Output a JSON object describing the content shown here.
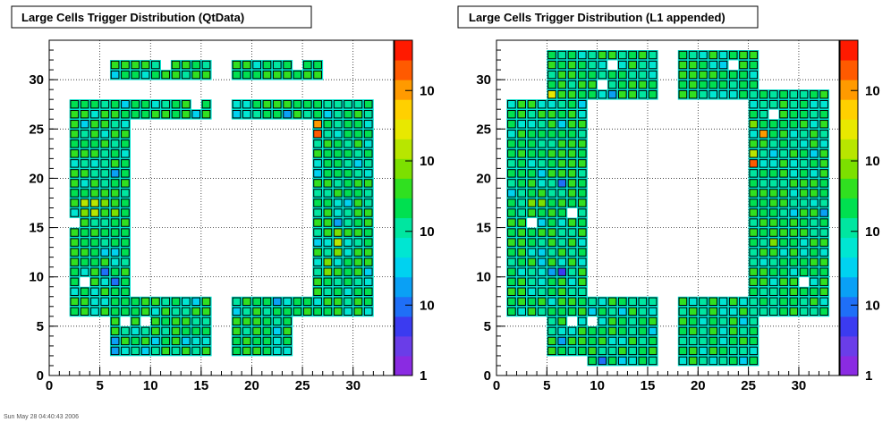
{
  "footer_text": "Sun May 28 04:40:43 2006",
  "chart_data": [
    {
      "type": "heatmap",
      "title": "Large Cells Trigger Distribution (QtData)",
      "xlabel": "",
      "ylabel": "",
      "xlim": [
        0,
        34
      ],
      "ylim": [
        0,
        34
      ],
      "x_ticks": [
        "0",
        "5",
        "10",
        "15",
        "20",
        "25",
        "30"
      ],
      "y_ticks": [
        "0",
        "5",
        "10",
        "15",
        "20",
        "25",
        "30"
      ],
      "z_ticks": [
        "1",
        "10",
        "10",
        "10",
        "10",
        "10"
      ],
      "z_scale": "log",
      "grid": true,
      "regions": [
        {
          "x": [
            6,
            16
          ],
          "y": [
            30,
            32
          ]
        },
        {
          "x": [
            18,
            27
          ],
          "y": [
            30,
            32
          ]
        },
        {
          "x": [
            2,
            16
          ],
          "y": [
            26,
            28
          ]
        },
        {
          "x": [
            18,
            32
          ],
          "y": [
            26,
            28
          ]
        },
        {
          "x": [
            2,
            8
          ],
          "y": [
            8,
            26
          ]
        },
        {
          "x": [
            26,
            32
          ],
          "y": [
            8,
            26
          ]
        },
        {
          "x": [
            2,
            16
          ],
          "y": [
            6,
            8
          ]
        },
        {
          "x": [
            18,
            32
          ],
          "y": [
            6,
            8
          ]
        },
        {
          "x": [
            6,
            16
          ],
          "y": [
            2,
            6
          ]
        },
        {
          "x": [
            18,
            24
          ],
          "y": [
            2,
            6
          ]
        }
      ],
      "holes": [
        [
          11,
          31
        ],
        [
          24,
          31
        ],
        [
          2,
          15
        ],
        [
          3,
          9
        ],
        [
          7,
          5
        ],
        [
          9,
          5
        ],
        [
          14,
          27
        ]
      ],
      "hot_cells": [
        {
          "x": 26,
          "y": 24,
          "level": 0.95
        },
        {
          "x": 26,
          "y": 25,
          "level": 0.85
        },
        {
          "x": 3,
          "y": 17,
          "level": 0.7
        },
        {
          "x": 4,
          "y": 17,
          "level": 0.7
        },
        {
          "x": 5,
          "y": 17,
          "level": 0.65
        },
        {
          "x": 4,
          "y": 16,
          "level": 0.68
        },
        {
          "x": 3,
          "y": 16,
          "level": 0.62
        },
        {
          "x": 6,
          "y": 16,
          "level": 0.6
        },
        {
          "x": 28,
          "y": 13,
          "level": 0.66
        },
        {
          "x": 28,
          "y": 12,
          "level": 0.64
        },
        {
          "x": 27,
          "y": 11,
          "level": 0.62
        },
        {
          "x": 27,
          "y": 10,
          "level": 0.6
        },
        {
          "x": 28,
          "y": 14,
          "level": 0.6
        },
        {
          "x": 6,
          "y": 9,
          "level": 0.18
        },
        {
          "x": 5,
          "y": 10,
          "level": 0.2
        },
        {
          "x": 6,
          "y": 20,
          "level": 0.22
        },
        {
          "x": 6,
          "y": 2,
          "level": 0.22
        },
        {
          "x": 6,
          "y": 3,
          "level": 0.25
        },
        {
          "x": 23,
          "y": 26,
          "level": 0.22
        },
        {
          "x": 22,
          "y": 7,
          "level": 0.25
        },
        {
          "x": 28,
          "y": 15,
          "level": 0.28
        },
        {
          "x": 6,
          "y": 30,
          "level": 0.3
        }
      ],
      "seed": 7
    },
    {
      "type": "heatmap",
      "title": "Large Cells Trigger Distribution (L1 appended)",
      "xlabel": "",
      "ylabel": "",
      "xlim": [
        0,
        34
      ],
      "ylim": [
        0,
        34
      ],
      "x_ticks": [
        "0",
        "5",
        "10",
        "15",
        "20",
        "25",
        "30"
      ],
      "y_ticks": [
        "0",
        "5",
        "10",
        "15",
        "20",
        "25",
        "30"
      ],
      "z_ticks": [
        "1",
        "10",
        "10",
        "10",
        "10",
        "10"
      ],
      "z_scale": "log",
      "grid": true,
      "regions": [
        {
          "x": [
            5,
            16
          ],
          "y": [
            28,
            33
          ]
        },
        {
          "x": [
            18,
            26
          ],
          "y": [
            28,
            33
          ]
        },
        {
          "x": 1,
          "y": [
            0,
            0
          ]
        },
        {
          "x": [
            1,
            9
          ],
          "y": [
            26,
            28
          ]
        },
        {
          "x": [
            25,
            33
          ],
          "y": [
            26,
            29
          ]
        },
        {
          "x": [
            1,
            9
          ],
          "y": [
            6,
            26
          ]
        },
        {
          "x": [
            25,
            33
          ],
          "y": [
            6,
            26
          ]
        },
        {
          "x": [
            1,
            16
          ],
          "y": [
            6,
            8
          ]
        },
        {
          "x": [
            18,
            33
          ],
          "y": [
            6,
            8
          ]
        },
        {
          "x": [
            5,
            16
          ],
          "y": [
            2,
            6
          ]
        },
        {
          "x": [
            18,
            26
          ],
          "y": [
            1,
            6
          ]
        },
        {
          "x": [
            9,
            16
          ],
          "y": [
            1,
            2
          ]
        }
      ],
      "holes": [
        [
          11,
          31
        ],
        [
          10,
          29
        ],
        [
          23,
          31
        ],
        [
          3,
          15
        ],
        [
          7,
          16
        ],
        [
          24,
          13
        ],
        [
          30,
          9
        ],
        [
          7,
          5
        ],
        [
          9,
          5
        ],
        [
          14,
          26
        ],
        [
          27,
          26
        ]
      ],
      "hot_cells": [
        {
          "x": 25,
          "y": 21,
          "level": 0.95
        },
        {
          "x": 26,
          "y": 24,
          "level": 0.9
        },
        {
          "x": 25,
          "y": 22,
          "level": 0.7
        },
        {
          "x": 5,
          "y": 28,
          "level": 0.78
        },
        {
          "x": 25,
          "y": 25,
          "level": 0.62
        },
        {
          "x": 3,
          "y": 17,
          "level": 0.62
        },
        {
          "x": 4,
          "y": 17,
          "level": 0.6
        },
        {
          "x": 27,
          "y": 13,
          "level": 0.6
        },
        {
          "x": 6,
          "y": 10,
          "level": 0.15
        },
        {
          "x": 5,
          "y": 10,
          "level": 0.22
        },
        {
          "x": 6,
          "y": 19,
          "level": 0.2
        },
        {
          "x": 6,
          "y": 3,
          "level": 0.22
        },
        {
          "x": 10,
          "y": 1,
          "level": 0.2
        },
        {
          "x": 11,
          "y": 28,
          "level": 0.25
        },
        {
          "x": 24,
          "y": 26,
          "level": 0.22
        },
        {
          "x": 26,
          "y": 5,
          "level": 0.25
        },
        {
          "x": 32,
          "y": 16,
          "level": 0.25
        }
      ],
      "seed": 19
    }
  ]
}
